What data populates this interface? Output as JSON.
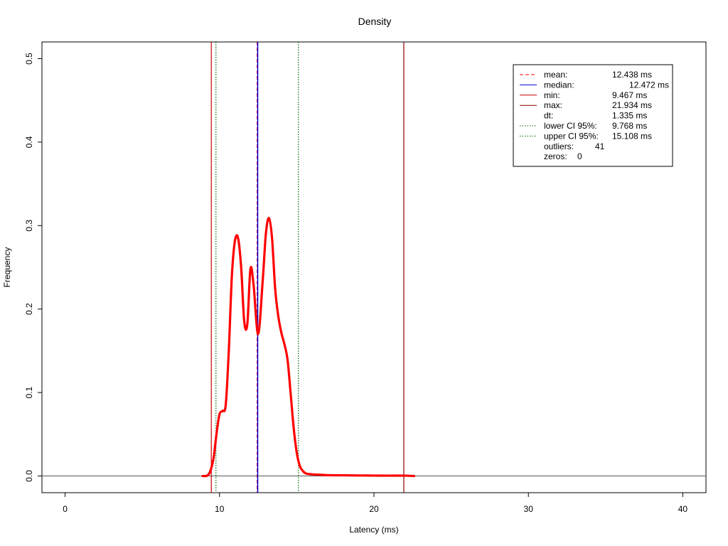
{
  "chart_data": {
    "type": "line",
    "title": "Density",
    "xlabel": "Latency (ms)",
    "ylabel": "Frequency",
    "xlim": [
      -1.5,
      41.5
    ],
    "ylim": [
      -0.02,
      0.52
    ],
    "xticks": [
      0,
      10,
      20,
      30,
      40
    ],
    "yticks": [
      0.0,
      0.1,
      0.2,
      0.3,
      0.4,
      0.5
    ],
    "xtick_labels": [
      "0",
      "10",
      "20",
      "30",
      "40"
    ],
    "ytick_labels": [
      "0.0",
      "0.1",
      "0.2",
      "0.3",
      "0.4",
      "0.5"
    ],
    "grid": false,
    "legend_position": "top-right",
    "series": [
      {
        "role": "density",
        "color": "#ff0000",
        "x": [
          8.9,
          9.3,
          9.6,
          9.8,
          10.0,
          10.2,
          10.4,
          10.6,
          10.8,
          11.0,
          11.2,
          11.4,
          11.6,
          11.8,
          12.0,
          12.2,
          12.5,
          12.8,
          13.0,
          13.2,
          13.4,
          13.6,
          13.8,
          14.0,
          14.2,
          14.4,
          14.6,
          14.8,
          15.0,
          15.2,
          15.4,
          15.6,
          16.0,
          16.5,
          17.0,
          18.0,
          19.0,
          20.0,
          21.0,
          22.0,
          22.6
        ],
        "y": [
          0.0,
          0.002,
          0.02,
          0.05,
          0.074,
          0.078,
          0.085,
          0.15,
          0.24,
          0.282,
          0.285,
          0.25,
          0.185,
          0.182,
          0.248,
          0.23,
          0.17,
          0.235,
          0.29,
          0.309,
          0.285,
          0.225,
          0.192,
          0.172,
          0.158,
          0.14,
          0.1,
          0.058,
          0.028,
          0.012,
          0.006,
          0.003,
          0.002,
          0.0015,
          0.001,
          0.0008,
          0.0006,
          0.0005,
          0.0004,
          0.0004,
          0.0
        ]
      }
    ],
    "reference_lines": [
      {
        "role": "mean",
        "x": 12.438,
        "color": "#ff0000",
        "dash": "dashed"
      },
      {
        "role": "median",
        "x": 12.472,
        "color": "#0000cc",
        "dash": "solid"
      },
      {
        "role": "min",
        "x": 9.467,
        "color": "#cc0000",
        "dash": "solid"
      },
      {
        "role": "max",
        "x": 21.934,
        "color": "#8b0000",
        "dash": "solid"
      },
      {
        "role": "lower-ci",
        "x": 9.768,
        "color": "#006400",
        "dash": "dotted"
      },
      {
        "role": "upper-ci",
        "x": 15.108,
        "color": "#006400",
        "dash": "dotted"
      }
    ],
    "hline": {
      "y": 0.0,
      "color": "#555555"
    },
    "legend": [
      {
        "label": "mean:",
        "value": "12.438 ms",
        "color": "#ff0000",
        "dash": "dashed"
      },
      {
        "label": "median:",
        "value": "12.472 ms",
        "color": "#0000cc",
        "dash": "solid"
      },
      {
        "label": "min:",
        "value": "9.467 ms",
        "color": "#cc0000",
        "dash": "solid"
      },
      {
        "label": "max:",
        "value": "21.934 ms",
        "color": "#8b0000",
        "dash": "solid"
      },
      {
        "label": "dt:",
        "value": "1.335 ms",
        "color": "",
        "dash": "none"
      },
      {
        "label": "lower CI 95%:",
        "value": "9.768 ms",
        "color": "#006400",
        "dash": "dotted"
      },
      {
        "label": "upper CI 95%:",
        "value": "15.108 ms",
        "color": "#006400",
        "dash": "dotted"
      },
      {
        "label": "outliers:",
        "value": "41",
        "color": "",
        "dash": "none"
      },
      {
        "label": "zeros:",
        "value": "0",
        "color": "",
        "dash": "none"
      }
    ]
  }
}
